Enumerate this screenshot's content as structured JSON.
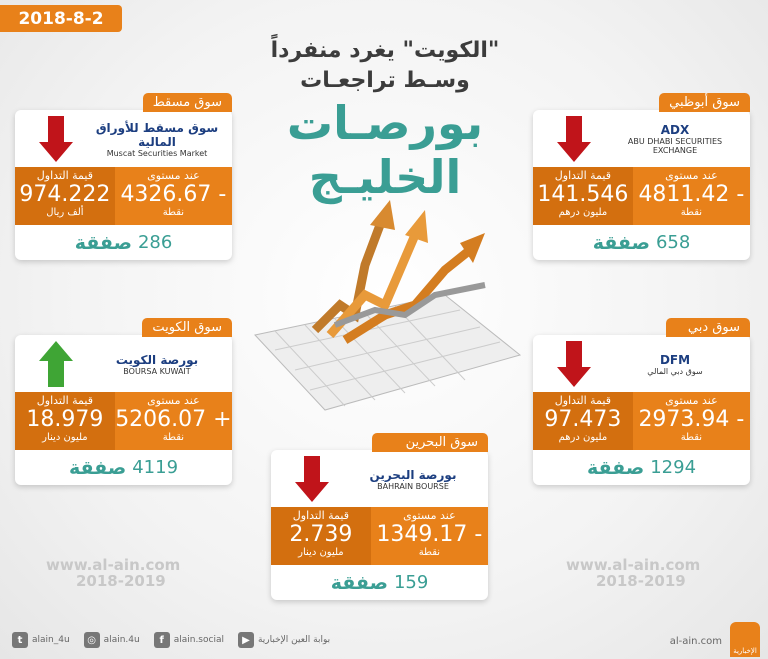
{
  "date": "2018-8-2",
  "title": {
    "line1": "\"الكويت\" يغرد منفرداً",
    "line2": "وسـط تراجعـات",
    "line3": "بورصـات",
    "line4": "الخليـج"
  },
  "colors": {
    "orange": "#e8811a",
    "dark_orange": "#d36f0f",
    "teal": "#3a9e94",
    "down": "#c0141a",
    "up": "#3fa535"
  },
  "markets": [
    {
      "id": "muscat",
      "name": "سوق مسقط",
      "logo": "سوق مسقط للأوراق المالية",
      "logo_en": "Muscat Securities Market",
      "trend": "down",
      "level_label": "عند مستوى",
      "level": "4326.67 -",
      "level_unit": "نقطة",
      "value_label": "قيمة التداول",
      "value": "974.222",
      "value_unit": "ألف ريال",
      "deals": "286",
      "deals_label": "صفقة"
    },
    {
      "id": "abudhabi",
      "name": "سوق أبوظبي",
      "logo": "ADX",
      "logo_en": "ABU DHABI SECURITIES EXCHANGE",
      "trend": "down",
      "level_label": "عند مستوى",
      "level": "4811.42 -",
      "level_unit": "نقطة",
      "value_label": "قيمة التداول",
      "value": "141.546",
      "value_unit": "مليون درهم",
      "deals": "658",
      "deals_label": "صفقة"
    },
    {
      "id": "kuwait",
      "name": "سوق الكويت",
      "logo": "بورصة الكويت",
      "logo_en": "BOURSA KUWAIT",
      "trend": "up",
      "level_label": "عند مستوى",
      "level": "5206.07 +",
      "level_unit": "نقطة",
      "value_label": "قيمة التداول",
      "value": "18.979",
      "value_unit": "مليون دينار",
      "deals": "4119",
      "deals_label": "صفقة"
    },
    {
      "id": "dubai",
      "name": "سوق دبي",
      "logo": "DFM",
      "logo_en": "سوق دبي المالي",
      "trend": "down",
      "level_label": "عند مستوى",
      "level": "2973.94 -",
      "level_unit": "نقطة",
      "value_label": "قيمة التداول",
      "value": "97.473",
      "value_unit": "مليون درهم",
      "deals": "1294",
      "deals_label": "صفقة"
    },
    {
      "id": "bahrain",
      "name": "سوق البحرين",
      "logo": "بورصة البحرين",
      "logo_en": "BAHRAIN BOURSE",
      "trend": "down",
      "level_label": "عند مستوى",
      "level": "1349.17 -",
      "level_unit": "نقطة",
      "value_label": "قيمة التداول",
      "value": "2.739",
      "value_unit": "مليون دينار",
      "deals": "159",
      "deals_label": "صفقة"
    }
  ],
  "watermark": {
    "url": "www.al-ain.com",
    "years": "2018-2019"
  },
  "footer": {
    "twitter": "alain_4u",
    "instagram": "alain.4u",
    "facebook": "alain.social",
    "youtube": "بوابة العين الإخبارية",
    "site": "al-ain.com",
    "brand": "الإخبارية"
  }
}
